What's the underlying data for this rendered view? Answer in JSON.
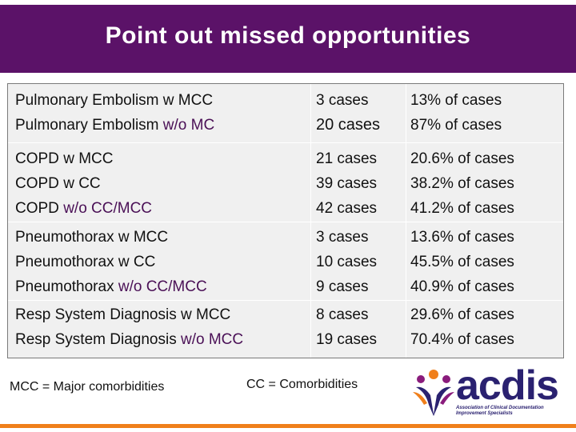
{
  "slide": {
    "title": "Point out missed opportunities"
  },
  "table": {
    "rows": [
      {
        "diagnoses": [
          {
            "base": "Pulmonary Embolism ",
            "qualifier": "w MCC"
          },
          {
            "base": "Pulmonary Embolism ",
            "qualifier": "w/o MC"
          }
        ],
        "cases": [
          "3 cases",
          "20 cases"
        ],
        "percents": [
          "13% of cases",
          "87% of cases"
        ]
      },
      {
        "diagnoses": [
          {
            "base": "COPD ",
            "qualifier": "w MCC"
          },
          {
            "base": "COPD ",
            "qualifier": "w CC"
          },
          {
            "base": "COPD ",
            "qualifier": "w/o CC/MCC"
          }
        ],
        "cases": [
          "21 cases",
          "39 cases",
          "42 cases"
        ],
        "percents": [
          "20.6% of cases",
          "38.2% of cases",
          "41.2% of cases"
        ]
      },
      {
        "diagnoses": [
          {
            "base": "Pneumothorax ",
            "qualifier": "w MCC"
          },
          {
            "base": "Pneumothorax ",
            "qualifier": "w CC"
          },
          {
            "base": "Pneumothorax ",
            "qualifier": "w/o CC/MCC"
          }
        ],
        "cases": [
          "3 cases",
          "10 cases",
          "9 cases"
        ],
        "percents": [
          "13.6% of cases",
          "45.5% of cases",
          "40.9% of cases"
        ]
      },
      {
        "diagnoses": [
          {
            "base": "Resp System Diagnosis ",
            "qualifier": "w MCC"
          },
          {
            "base": "Resp System Diagnosis ",
            "qualifier": "w/o MCC"
          }
        ],
        "cases": [
          "8 cases",
          "19 cases"
        ],
        "percents": [
          "29.6% of cases",
          "70.4% of cases"
        ]
      }
    ]
  },
  "footer": {
    "mcc_legend": "MCC = Major comorbidities",
    "cc_legend": "CC = Comorbidities"
  },
  "logo": {
    "wordmark": "acdis",
    "tagline": "Association of Clinical Documentation Improvement Specialists"
  },
  "colors": {
    "title_bar": "#5b1268",
    "table_bg": "#f0f0f0",
    "accent_orange": "#f07f1b",
    "logo_navy": "#2a2170"
  }
}
